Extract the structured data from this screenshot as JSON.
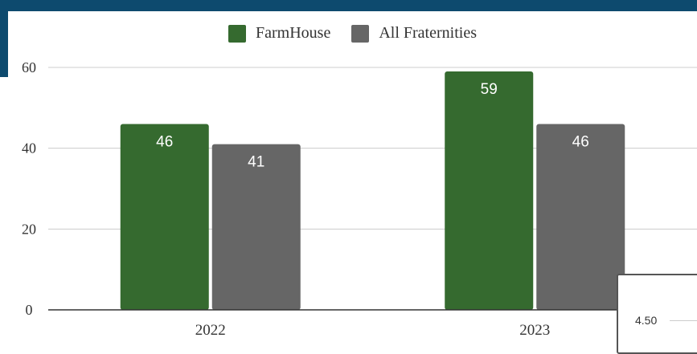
{
  "chart_data": {
    "type": "bar",
    "categories": [
      "2022",
      "2023"
    ],
    "series": [
      {
        "name": "FarmHouse",
        "values": [
          46,
          59
        ],
        "color": "#356a2f"
      },
      {
        "name": "All Fraternities",
        "values": [
          41,
          46
        ],
        "color": "#666666"
      }
    ],
    "ylim": [
      0,
      60
    ],
    "yticks": [
      0,
      20,
      40,
      60
    ],
    "grid": true,
    "legend_position": "top",
    "data_labels": true
  },
  "inset": {
    "value": "4.50"
  },
  "colors": {
    "header_band": "#0d4a6e",
    "gridline": "#cccccc",
    "axis": "#333333"
  }
}
